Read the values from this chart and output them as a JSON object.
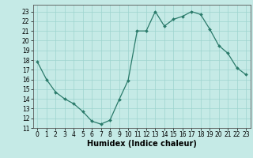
{
  "x": [
    0,
    1,
    2,
    3,
    4,
    5,
    6,
    7,
    8,
    9,
    10,
    11,
    12,
    13,
    14,
    15,
    16,
    17,
    18,
    19,
    20,
    21,
    22,
    23
  ],
  "y": [
    17.8,
    16.0,
    14.7,
    14.0,
    13.5,
    12.7,
    11.7,
    11.4,
    11.8,
    13.9,
    15.9,
    21.0,
    21.0,
    23.0,
    21.5,
    22.2,
    22.5,
    23.0,
    22.7,
    21.2,
    19.5,
    18.7,
    17.2,
    16.5
  ],
  "title": "",
  "xlabel": "Humidex (Indice chaleur)",
  "ylabel": "",
  "xlim": [
    -0.5,
    23.5
  ],
  "ylim": [
    11,
    23.7
  ],
  "yticks": [
    11,
    12,
    13,
    14,
    15,
    16,
    17,
    18,
    19,
    20,
    21,
    22,
    23
  ],
  "xticks": [
    0,
    1,
    2,
    3,
    4,
    5,
    6,
    7,
    8,
    9,
    10,
    11,
    12,
    13,
    14,
    15,
    16,
    17,
    18,
    19,
    20,
    21,
    22,
    23
  ],
  "line_color": "#2a7a6a",
  "marker_color": "#2a7a6a",
  "bg_color": "#c5eae6",
  "grid_color": "#9dd4ce",
  "tick_fontsize": 5.5,
  "xlabel_fontsize": 7.0
}
